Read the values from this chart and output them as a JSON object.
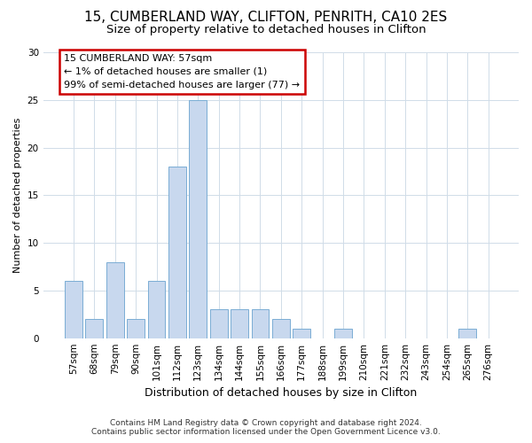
{
  "title": "15, CUMBERLAND WAY, CLIFTON, PENRITH, CA10 2ES",
  "subtitle": "Size of property relative to detached houses in Clifton",
  "xlabel": "Distribution of detached houses by size in Clifton",
  "ylabel": "Number of detached properties",
  "categories": [
    "57sqm",
    "68sqm",
    "79sqm",
    "90sqm",
    "101sqm",
    "112sqm",
    "123sqm",
    "134sqm",
    "144sqm",
    "155sqm",
    "166sqm",
    "177sqm",
    "188sqm",
    "199sqm",
    "210sqm",
    "221sqm",
    "232sqm",
    "243sqm",
    "254sqm",
    "265sqm",
    "276sqm"
  ],
  "values": [
    6,
    2,
    8,
    2,
    6,
    18,
    25,
    3,
    3,
    3,
    2,
    1,
    0,
    1,
    0,
    0,
    0,
    0,
    0,
    1,
    0
  ],
  "bar_color": "#c8d8ee",
  "bar_edge_color": "#7aadd4",
  "annotation_box_text": "15 CUMBERLAND WAY: 57sqm\n← 1% of detached houses are smaller (1)\n99% of semi-detached houses are larger (77) →",
  "annotation_box_color": "#ffffff",
  "annotation_box_edge_color": "#cc0000",
  "ylim": [
    0,
    30
  ],
  "yticks": [
    0,
    5,
    10,
    15,
    20,
    25,
    30
  ],
  "footnote": "Contains HM Land Registry data © Crown copyright and database right 2024.\nContains public sector information licensed under the Open Government Licence v3.0.",
  "background_color": "#ffffff",
  "plot_bg_color": "#ffffff",
  "grid_color": "#d0dce8",
  "title_fontsize": 11,
  "subtitle_fontsize": 9.5,
  "xlabel_fontsize": 9,
  "ylabel_fontsize": 8,
  "tick_fontsize": 7.5,
  "annotation_fontsize": 8,
  "footnote_fontsize": 6.5
}
